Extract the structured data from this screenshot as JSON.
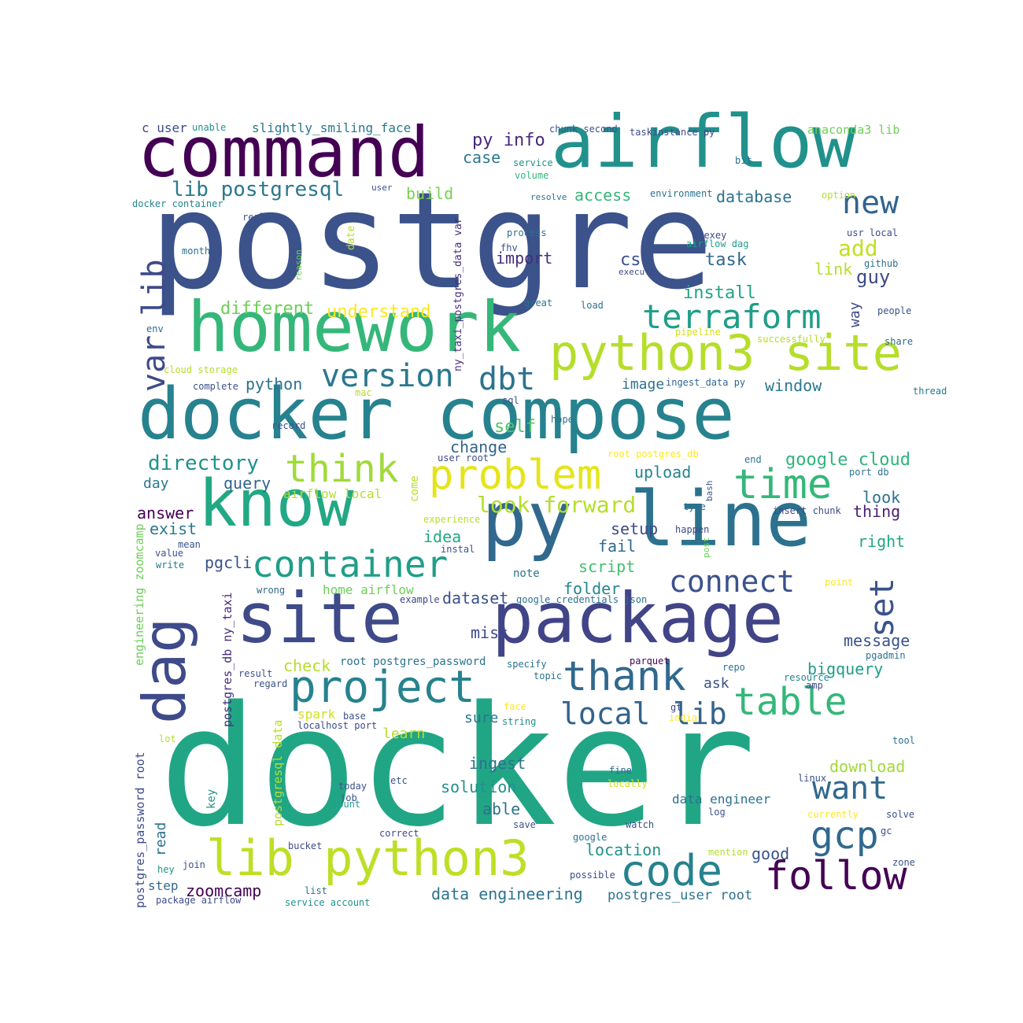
{
  "palette": {
    "dark_purple": "#440154",
    "indigo": "#3b528b",
    "slate_blue": "#31688e",
    "teal_blue": "#26828e",
    "teal": "#21918c",
    "green_teal": "#1f9e89",
    "green": "#35b779",
    "light_green": "#6ece58",
    "yellow_green": "#b5de2b",
    "yellow": "#fde725"
  },
  "words": [
    {
      "text": "docker",
      "color": "#21a685"
    },
    {
      "text": "postgre",
      "color": "#3b528b"
    },
    {
      "text": "command",
      "color": "#440154"
    },
    {
      "text": "airflow",
      "color": "#21918c"
    },
    {
      "text": "homework",
      "color": "#35b779"
    },
    {
      "text": "docker compose",
      "color": "#26828e"
    },
    {
      "text": "py",
      "color": "#31688e"
    },
    {
      "text": "line",
      "color": "#2c728e"
    },
    {
      "text": "know",
      "color": "#22a884"
    },
    {
      "text": "site",
      "color": "#3e4a89"
    },
    {
      "text": "package",
      "color": "#414487"
    },
    {
      "text": "dag",
      "color": "#3e4a89"
    },
    {
      "text": "python3 site",
      "color": "#b5de2b"
    },
    {
      "text": "problem",
      "color": "#e5e419"
    },
    {
      "text": "lib python3",
      "color": "#bddf26"
    },
    {
      "text": "project",
      "color": "#26828e"
    },
    {
      "text": "container",
      "color": "#1f9e89"
    },
    {
      "text": "thank",
      "color": "#31688e"
    },
    {
      "text": "terraform",
      "color": "#1f9e89"
    },
    {
      "text": "time",
      "color": "#35b779"
    },
    {
      "text": "table",
      "color": "#35b779"
    },
    {
      "text": "follow",
      "color": "#440154"
    },
    {
      "text": "code",
      "color": "#26828e"
    },
    {
      "text": "think",
      "color": "#a0da39"
    },
    {
      "text": "version",
      "color": "#2a788e"
    },
    {
      "text": "dbt",
      "color": "#2c728e"
    },
    {
      "text": "new",
      "color": "#33638d"
    },
    {
      "text": "var lib",
      "color": "#3e4a89"
    },
    {
      "text": "set",
      "color": "#3b528b"
    },
    {
      "text": "connect",
      "color": "#3b528b"
    },
    {
      "text": "want",
      "color": "#31688e"
    },
    {
      "text": "gcp",
      "color": "#31688e"
    },
    {
      "text": "local",
      "color": "#33638d"
    },
    {
      "text": "lib",
      "color": "#33638d"
    },
    {
      "text": "lib postgresql",
      "color": "#2a788e"
    },
    {
      "text": "look forward",
      "color": "#b5de2b"
    },
    {
      "text": "directory",
      "color": "#21918c"
    },
    {
      "text": "google cloud",
      "color": "#2fb47c"
    },
    {
      "text": "py info",
      "color": "#482878"
    },
    {
      "text": "add",
      "color": "#c2df23"
    },
    {
      "text": "guy",
      "color": "#3e4a89"
    },
    {
      "text": "different",
      "color": "#6ece58"
    },
    {
      "text": "understand",
      "color": "#fde725"
    },
    {
      "text": "install",
      "color": "#20a386"
    },
    {
      "text": "window",
      "color": "#2a788e"
    },
    {
      "text": "python",
      "color": "#2c728e"
    },
    {
      "text": "image",
      "color": "#2c728e"
    },
    {
      "text": "csv",
      "color": "#3b528b"
    },
    {
      "text": "task",
      "color": "#31688e"
    },
    {
      "text": "import",
      "color": "#472d7b"
    },
    {
      "text": "link",
      "color": "#b5de2b"
    },
    {
      "text": "database",
      "color": "#2c728e"
    },
    {
      "text": "access",
      "color": "#35b779"
    },
    {
      "text": "build",
      "color": "#7ad151"
    },
    {
      "text": "case",
      "color": "#2a788e"
    },
    {
      "text": "self",
      "color": "#52c569"
    },
    {
      "text": "change",
      "color": "#33638d"
    },
    {
      "text": "upload",
      "color": "#25858e"
    },
    {
      "text": "query",
      "color": "#33638d"
    },
    {
      "text": "day",
      "color": "#2a788e"
    },
    {
      "text": "answer",
      "color": "#440154"
    },
    {
      "text": "exist",
      "color": "#2a788e"
    },
    {
      "text": "idea",
      "color": "#22a884"
    },
    {
      "text": "pgcli",
      "color": "#3b528b"
    },
    {
      "text": "setup",
      "color": "#3e4a89"
    },
    {
      "text": "fail",
      "color": "#31688e"
    },
    {
      "text": "script",
      "color": "#44bf70"
    },
    {
      "text": "folder",
      "color": "#25858e"
    },
    {
      "text": "dataset",
      "color": "#3b528b"
    },
    {
      "text": "miss",
      "color": "#3e4a89"
    },
    {
      "text": "look",
      "color": "#2c728e"
    },
    {
      "text": "thing",
      "color": "#481f70"
    },
    {
      "text": "right",
      "color": "#22a884"
    },
    {
      "text": "message",
      "color": "#3b528b"
    },
    {
      "text": "bigquery",
      "color": "#1f9e89"
    },
    {
      "text": "check",
      "color": "#b5de2b"
    },
    {
      "text": "ask",
      "color": "#3b528b"
    },
    {
      "text": "spark",
      "color": "#d0e11c"
    },
    {
      "text": "sure",
      "color": "#2c728e"
    },
    {
      "text": "learn",
      "color": "#b5de2b"
    },
    {
      "text": "ingest",
      "color": "#2c728e"
    },
    {
      "text": "solution",
      "color": "#21918c"
    },
    {
      "text": "able",
      "color": "#2c728e"
    },
    {
      "text": "download",
      "color": "#a0da39"
    },
    {
      "text": "data engineer",
      "color": "#2c728e"
    },
    {
      "text": "location",
      "color": "#21918c"
    },
    {
      "text": "good",
      "color": "#3b528b"
    },
    {
      "text": "data engineering",
      "color": "#2c728e"
    },
    {
      "text": "postgres_user root",
      "color": "#2c728e"
    },
    {
      "text": "zoomcamp",
      "color": "#440154"
    },
    {
      "text": "step",
      "color": "#31688e"
    },
    {
      "text": "read",
      "color": "#2c728e"
    },
    {
      "text": "way",
      "color": "#3e4a89"
    },
    {
      "text": "slightly_smiling_face",
      "color": "#2a788e"
    },
    {
      "text": "c user",
      "color": "#3e4a89"
    },
    {
      "text": "anaconda3 lib",
      "color": "#6ece58"
    },
    {
      "text": "airflow local",
      "color": "#b5de2b"
    },
    {
      "text": "home airflow",
      "color": "#6ece58"
    },
    {
      "text": "root postgres_password",
      "color": "#2c728e"
    },
    {
      "text": "postgres_password root",
      "color": "#3e4a89"
    },
    {
      "text": "postgres_db ny_taxi",
      "color": "#472d7b"
    },
    {
      "text": "postgresql data",
      "color": "#b5de2b"
    },
    {
      "text": "engineering zoomcamp",
      "color": "#6ece58"
    },
    {
      "text": "ny_taxi_postgres_data var",
      "color": "#472d7b"
    },
    {
      "text": "date",
      "color": "#b5de2b"
    },
    {
      "text": "come",
      "color": "#b5de2b"
    },
    {
      "text": "key",
      "color": "#21918c"
    },
    {
      "text": "unable",
      "color": "#21918c"
    },
    {
      "text": "user",
      "color": "#3b528b"
    },
    {
      "text": "docker container",
      "color": "#25858e"
    },
    {
      "text": "real",
      "color": "#3b528b"
    },
    {
      "text": "month",
      "color": "#2c728e"
    },
    {
      "text": "reason",
      "color": "#6ece58"
    },
    {
      "text": "env",
      "color": "#31688e"
    },
    {
      "text": "cloud storage",
      "color": "#b5de2b"
    },
    {
      "text": "complete",
      "color": "#3b528b"
    },
    {
      "text": "mac",
      "color": "#b5de2b"
    },
    {
      "text": "record",
      "color": "#3b528b"
    },
    {
      "text": "sql",
      "color": "#3b528b"
    },
    {
      "text": "hope",
      "color": "#2c728e"
    },
    {
      "text": "user root",
      "color": "#3e4a89"
    },
    {
      "text": "chunk second",
      "color": "#3b528b"
    },
    {
      "text": "taskinstance py",
      "color": "#3e4a89"
    },
    {
      "text": "service",
      "color": "#21918c"
    },
    {
      "text": "volume",
      "color": "#2fb47c"
    },
    {
      "text": "bit",
      "color": "#2c728e"
    },
    {
      "text": "resolve",
      "color": "#2c728e"
    },
    {
      "text": "environment",
      "color": "#2c728e"
    },
    {
      "text": "option",
      "color": "#b5de2b"
    },
    {
      "text": "process",
      "color": "#2c728e"
    },
    {
      "text": "fhv",
      "color": "#3b528b"
    },
    {
      "text": "alexey",
      "color": "#3e4a89"
    },
    {
      "text": "airflow dag",
      "color": "#1f9e89"
    },
    {
      "text": "usr local",
      "color": "#3e4a89"
    },
    {
      "text": "github",
      "color": "#2c728e"
    },
    {
      "text": "execute",
      "color": "#3e4a89"
    },
    {
      "text": "great",
      "color": "#2c728e"
    },
    {
      "text": "load",
      "color": "#2c728e"
    },
    {
      "text": "people",
      "color": "#3b528b"
    },
    {
      "text": "pipeline",
      "color": "#d0e11c"
    },
    {
      "text": "successfully",
      "color": "#b5de2b"
    },
    {
      "text": "share",
      "color": "#31688e"
    },
    {
      "text": "ingest_data py",
      "color": "#31688e"
    },
    {
      "text": "thread",
      "color": "#2a788e"
    },
    {
      "text": "root postgres_db",
      "color": "#fde725"
    },
    {
      "text": "end",
      "color": "#2c728e"
    },
    {
      "text": "bash",
      "color": "#3b528b"
    },
    {
      "text": "port db",
      "color": "#2c728e"
    },
    {
      "text": "type",
      "color": "#2c728e"
    },
    {
      "text": "insert chunk",
      "color": "#3e4a89"
    },
    {
      "text": "experience",
      "color": "#b5de2b"
    },
    {
      "text": "happen",
      "color": "#3e4a89"
    },
    {
      "text": "mean",
      "color": "#3b528b"
    },
    {
      "text": "instal",
      "color": "#3b528b"
    },
    {
      "text": "value",
      "color": "#3b528b"
    },
    {
      "text": "post",
      "color": "#6ece58"
    },
    {
      "text": "write",
      "color": "#2a788e"
    },
    {
      "text": "note",
      "color": "#2c728e"
    },
    {
      "text": "wrong",
      "color": "#31688e"
    },
    {
      "text": "point",
      "color": "#fde725"
    },
    {
      "text": "example",
      "color": "#3e4a89"
    },
    {
      "text": "google_credentials json",
      "color": "#2c728e"
    },
    {
      "text": "specify",
      "color": "#2c728e"
    },
    {
      "text": "parquet",
      "color": "#440154"
    },
    {
      "text": "repo",
      "color": "#2c728e"
    },
    {
      "text": "pgadmin",
      "color": "#2c728e"
    },
    {
      "text": "result",
      "color": "#3b528b"
    },
    {
      "text": "topic",
      "color": "#2c728e"
    },
    {
      "text": "resource",
      "color": "#25858e"
    },
    {
      "text": "regard",
      "color": "#3b528b"
    },
    {
      "text": "amp",
      "color": "#3e4a89"
    },
    {
      "text": "face",
      "color": "#fde725"
    },
    {
      "text": "gt",
      "color": "#3e4a89"
    },
    {
      "text": "base",
      "color": "#3b528b"
    },
    {
      "text": "string",
      "color": "#21918c"
    },
    {
      "text": "india",
      "color": "#fde725"
    },
    {
      "text": "localhost port",
      "color": "#3e4a89"
    },
    {
      "text": "lot",
      "color": "#b5de2b"
    },
    {
      "text": "tool",
      "color": "#2c728e"
    },
    {
      "text": "fine",
      "color": "#31688e"
    },
    {
      "text": "locally",
      "color": "#d0e11c"
    },
    {
      "text": "today",
      "color": "#3b528b"
    },
    {
      "text": "etc",
      "color": "#3b528b"
    },
    {
      "text": "linux",
      "color": "#3b528b"
    },
    {
      "text": "job",
      "color": "#3b528b"
    },
    {
      "text": "count",
      "color": "#1f9e89"
    },
    {
      "text": "log",
      "color": "#3b528b"
    },
    {
      "text": "currently",
      "color": "#fde725"
    },
    {
      "text": "solve",
      "color": "#3b528b"
    },
    {
      "text": "save",
      "color": "#3b528b"
    },
    {
      "text": "watch",
      "color": "#3b528b"
    },
    {
      "text": "correct",
      "color": "#3e4a89"
    },
    {
      "text": "gc",
      "color": "#3b528b"
    },
    {
      "text": "bucket",
      "color": "#3e4a89"
    },
    {
      "text": "google",
      "color": "#2c728e"
    },
    {
      "text": "mention",
      "color": "#b5de2b"
    },
    {
      "text": "zone",
      "color": "#3b528b"
    },
    {
      "text": "hey",
      "color": "#21918c"
    },
    {
      "text": "join",
      "color": "#3b528b"
    },
    {
      "text": "possible",
      "color": "#3e4a89"
    },
    {
      "text": "list",
      "color": "#2c728e"
    },
    {
      "text": "package airflow",
      "color": "#3e4a89"
    },
    {
      "text": "service account",
      "color": "#21918c"
    }
  ]
}
